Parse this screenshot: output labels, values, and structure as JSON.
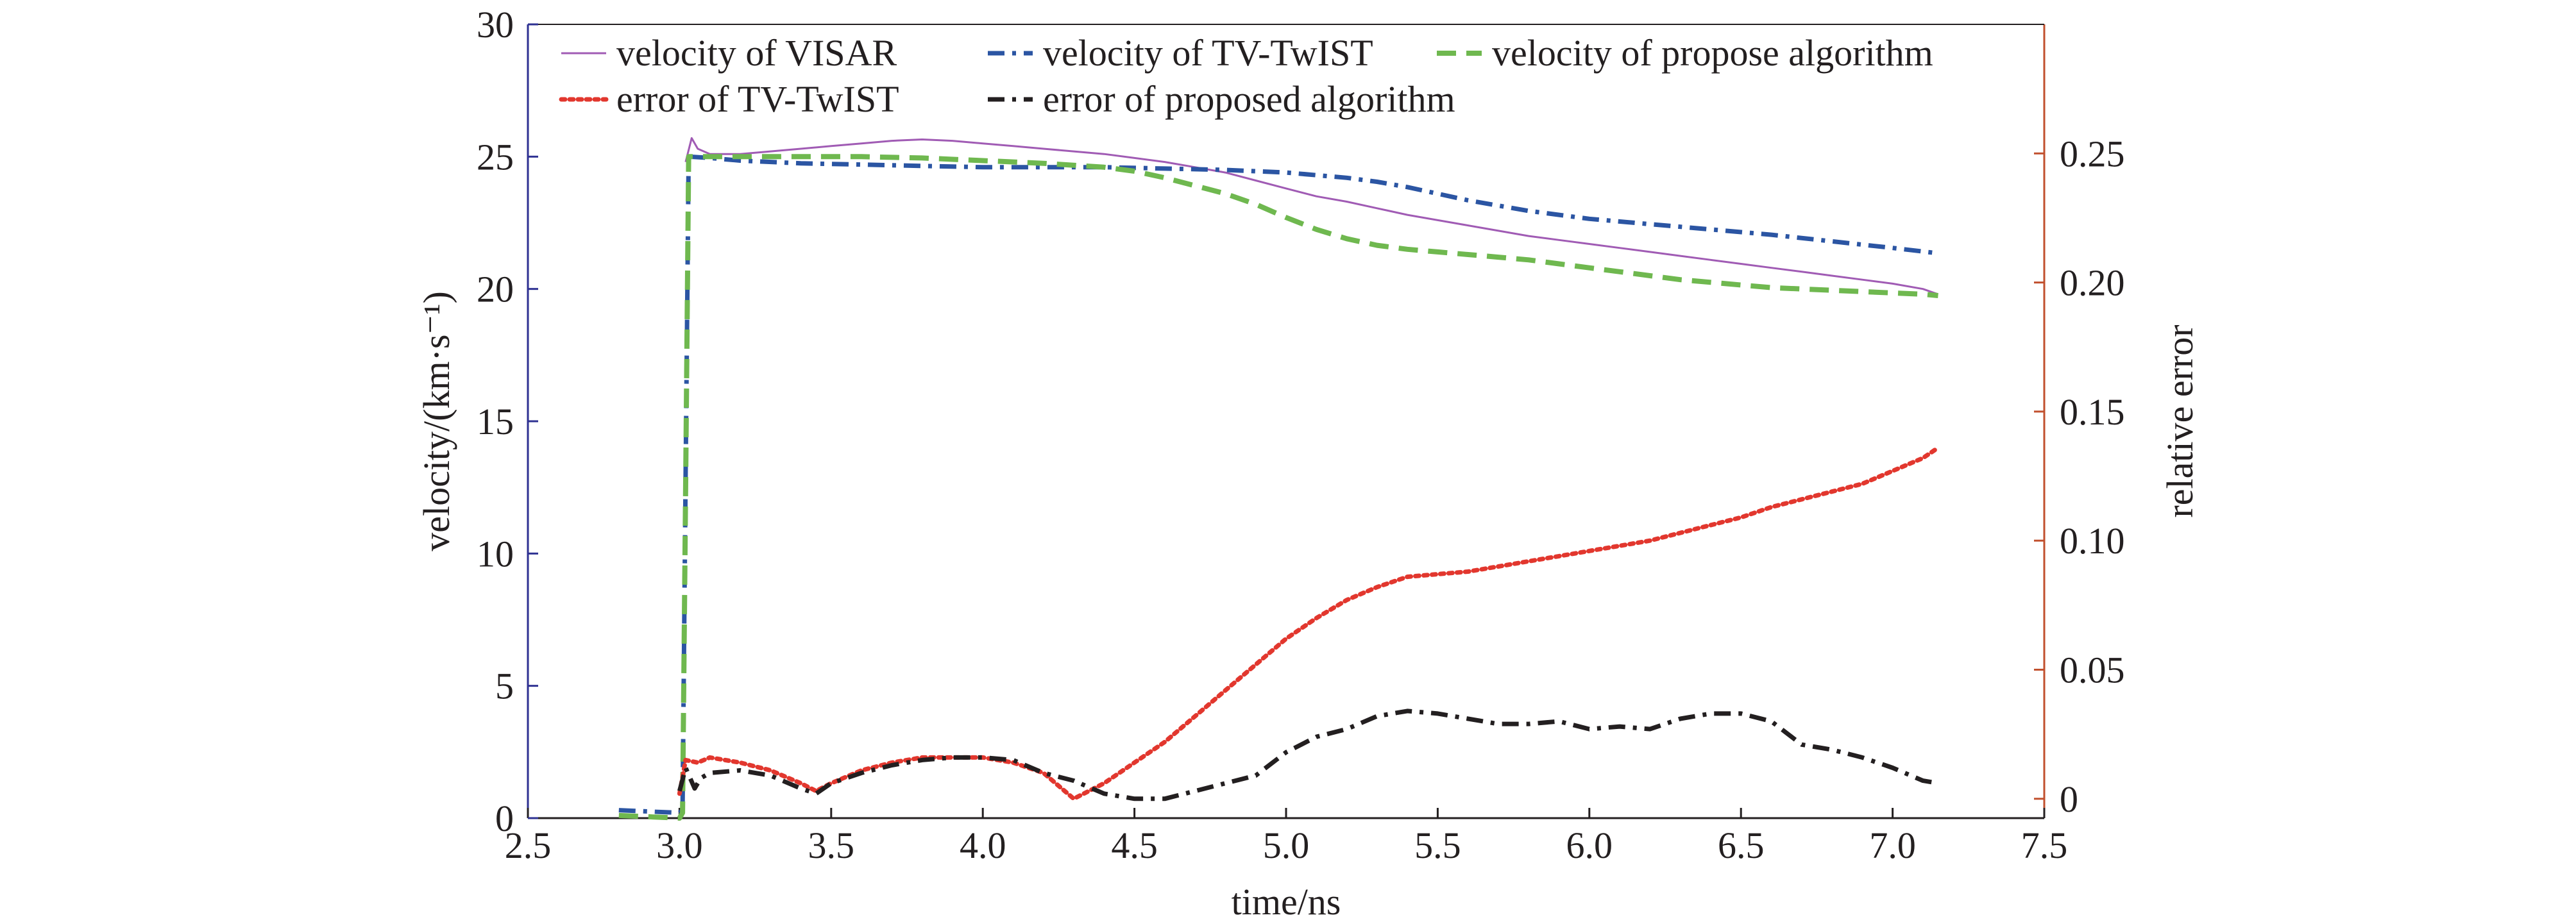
{
  "chart_data": {
    "type": "line",
    "xlabel": "time/ns",
    "ylabel": "velocity/(km·s⁻¹)",
    "y2label": "relative error",
    "xlim": [
      2.5,
      7.5
    ],
    "ylim": [
      0,
      30
    ],
    "y2lim": [
      -0.0075,
      0.3
    ],
    "xticks": [
      2.5,
      3.0,
      3.5,
      4.0,
      4.5,
      5.0,
      5.5,
      6.0,
      6.5,
      7.0,
      7.5
    ],
    "xtick_labels": [
      "2.5",
      "3.0",
      "3.5",
      "4.0",
      "4.5",
      "5.0",
      "5.5",
      "6.0",
      "6.5",
      "7.0",
      "7.5"
    ],
    "yticks": [
      0,
      5,
      10,
      15,
      20,
      25,
      30
    ],
    "ytick_labels": [
      "0",
      "5",
      "10",
      "15",
      "20",
      "25",
      "30"
    ],
    "y2ticks": [
      0,
      0.05,
      0.1,
      0.15,
      0.2,
      0.25
    ],
    "y2tick_labels": [
      "0",
      "0.05",
      "0.10",
      "0.15",
      "0.20",
      "0.25"
    ],
    "grid": false,
    "legend_position": "top",
    "colors": {
      "axis_left": "#2e3192",
      "axis_right": "#c1502e",
      "axis_bottom": "#231f20"
    },
    "series": [
      {
        "name": "velocity of VISAR",
        "axis": "left",
        "color": "#a05bb4",
        "style": "solid",
        "x": [
          3.02,
          3.04,
          3.06,
          3.1,
          3.2,
          3.3,
          3.4,
          3.5,
          3.6,
          3.7,
          3.8,
          3.9,
          4.0,
          4.1,
          4.2,
          4.3,
          4.4,
          4.5,
          4.6,
          4.7,
          4.8,
          4.9,
          5.0,
          5.1,
          5.2,
          5.3,
          5.4,
          5.5,
          5.6,
          5.7,
          5.8,
          5.9,
          6.0,
          6.1,
          6.2,
          6.3,
          6.4,
          6.5,
          6.6,
          6.7,
          6.8,
          6.9,
          7.0,
          7.1,
          7.15
        ],
        "y": [
          24.8,
          25.7,
          25.3,
          25.1,
          25.1,
          25.2,
          25.3,
          25.4,
          25.5,
          25.6,
          25.65,
          25.6,
          25.5,
          25.4,
          25.3,
          25.2,
          25.1,
          24.95,
          24.8,
          24.6,
          24.4,
          24.1,
          23.8,
          23.5,
          23.3,
          23.05,
          22.8,
          22.6,
          22.4,
          22.2,
          22.0,
          21.85,
          21.7,
          21.55,
          21.4,
          21.25,
          21.1,
          20.95,
          20.8,
          20.65,
          20.5,
          20.35,
          20.2,
          20.0,
          19.8
        ]
      },
      {
        "name": "velocity of TV-TwIST",
        "axis": "left",
        "color": "#2b55a3",
        "style": "dashdot",
        "x": [
          2.8,
          2.9,
          3.0,
          3.01,
          3.02,
          3.03,
          3.1,
          3.2,
          3.4,
          3.6,
          3.8,
          4.0,
          4.2,
          4.4,
          4.6,
          4.8,
          5.0,
          5.1,
          5.2,
          5.3,
          5.4,
          5.5,
          5.6,
          5.7,
          5.8,
          5.9,
          6.0,
          6.2,
          6.4,
          6.6,
          6.8,
          7.0,
          7.15
        ],
        "y": [
          0.3,
          0.25,
          0.2,
          0.3,
          13.0,
          25.0,
          24.95,
          24.85,
          24.75,
          24.7,
          24.65,
          24.6,
          24.6,
          24.6,
          24.55,
          24.5,
          24.4,
          24.3,
          24.2,
          24.05,
          23.85,
          23.6,
          23.35,
          23.15,
          22.95,
          22.8,
          22.65,
          22.45,
          22.25,
          22.05,
          21.8,
          21.55,
          21.35
        ]
      },
      {
        "name": "velocity of propose algorithm",
        "axis": "left",
        "color": "#6fb84f",
        "style": "dashed",
        "x": [
          2.8,
          2.9,
          3.0,
          3.01,
          3.02,
          3.03,
          3.1,
          3.2,
          3.4,
          3.6,
          3.8,
          4.0,
          4.2,
          4.4,
          4.5,
          4.6,
          4.7,
          4.8,
          4.9,
          5.0,
          5.1,
          5.2,
          5.3,
          5.4,
          5.5,
          5.6,
          5.7,
          5.8,
          5.9,
          6.0,
          6.1,
          6.2,
          6.3,
          6.4,
          6.5,
          6.6,
          6.7,
          6.8,
          6.9,
          7.0,
          7.1,
          7.15
        ],
        "y": [
          0.1,
          0.05,
          0.0,
          0.2,
          12.5,
          25.0,
          25.0,
          25.0,
          25.0,
          25.0,
          24.95,
          24.85,
          24.75,
          24.6,
          24.45,
          24.2,
          23.9,
          23.6,
          23.2,
          22.7,
          22.25,
          21.9,
          21.65,
          21.5,
          21.4,
          21.3,
          21.2,
          21.1,
          20.95,
          20.8,
          20.65,
          20.5,
          20.35,
          20.25,
          20.15,
          20.05,
          20.0,
          19.95,
          19.9,
          19.85,
          19.8,
          19.75
        ]
      },
      {
        "name": "error of TV-TwIST",
        "axis": "right",
        "color": "#e2372e",
        "style": "dotted",
        "x": [
          3.0,
          3.02,
          3.06,
          3.1,
          3.2,
          3.3,
          3.4,
          3.45,
          3.5,
          3.6,
          3.7,
          3.8,
          3.9,
          4.0,
          4.1,
          4.2,
          4.3,
          4.4,
          4.5,
          4.6,
          4.7,
          4.8,
          4.9,
          5.0,
          5.1,
          5.2,
          5.3,
          5.4,
          5.5,
          5.6,
          5.7,
          5.8,
          5.9,
          6.0,
          6.1,
          6.2,
          6.3,
          6.4,
          6.5,
          6.6,
          6.7,
          6.8,
          6.9,
          7.0,
          7.1,
          7.15
        ],
        "y": [
          0.002,
          0.015,
          0.014,
          0.016,
          0.014,
          0.011,
          0.006,
          0.003,
          0.006,
          0.011,
          0.014,
          0.016,
          0.016,
          0.016,
          0.014,
          0.01,
          0.0,
          0.006,
          0.014,
          0.022,
          0.032,
          0.042,
          0.052,
          0.062,
          0.07,
          0.077,
          0.082,
          0.086,
          0.087,
          0.088,
          0.09,
          0.092,
          0.094,
          0.096,
          0.098,
          0.1,
          0.103,
          0.106,
          0.109,
          0.113,
          0.116,
          0.119,
          0.122,
          0.127,
          0.132,
          0.136
        ]
      },
      {
        "name": "error of proposed algorithm",
        "axis": "right",
        "color": "#231f20",
        "style": "dashdot",
        "x": [
          3.0,
          3.02,
          3.05,
          3.07,
          3.1,
          3.2,
          3.3,
          3.4,
          3.45,
          3.5,
          3.6,
          3.7,
          3.8,
          3.9,
          4.0,
          4.1,
          4.2,
          4.3,
          4.4,
          4.5,
          4.6,
          4.7,
          4.8,
          4.9,
          5.0,
          5.1,
          5.2,
          5.3,
          5.4,
          5.5,
          5.6,
          5.7,
          5.8,
          5.9,
          6.0,
          6.1,
          6.2,
          6.3,
          6.4,
          6.5,
          6.6,
          6.7,
          6.8,
          6.9,
          7.0,
          7.1,
          7.15
        ],
        "y": [
          0.003,
          0.012,
          0.004,
          0.008,
          0.01,
          0.011,
          0.009,
          0.004,
          0.002,
          0.006,
          0.01,
          0.013,
          0.015,
          0.016,
          0.016,
          0.015,
          0.01,
          0.007,
          0.002,
          0.0,
          0.0,
          0.003,
          0.006,
          0.009,
          0.018,
          0.024,
          0.027,
          0.032,
          0.034,
          0.033,
          0.031,
          0.029,
          0.029,
          0.03,
          0.027,
          0.028,
          0.027,
          0.031,
          0.033,
          0.033,
          0.03,
          0.021,
          0.019,
          0.016,
          0.012,
          0.007,
          0.006
        ]
      }
    ]
  }
}
